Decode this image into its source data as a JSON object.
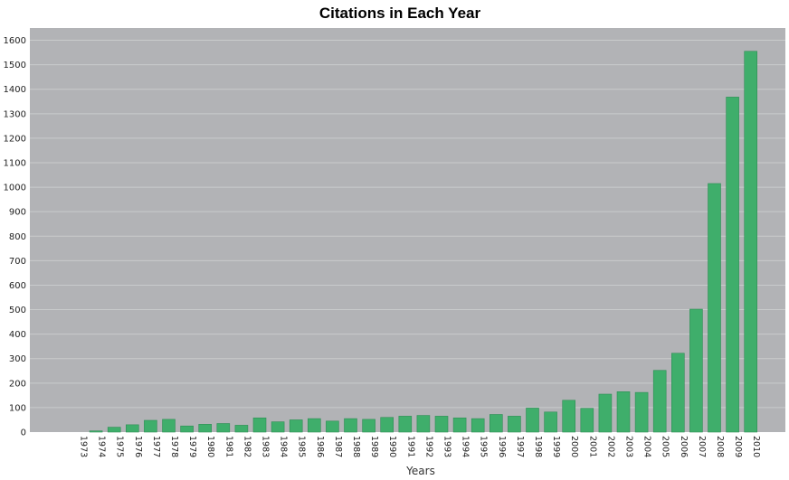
{
  "chart_data": {
    "type": "bar",
    "title": "Citations in Each Year",
    "xlabel": "Years",
    "ylabel": "",
    "ylim": [
      0,
      1650
    ],
    "yticks": [
      0,
      100,
      200,
      300,
      400,
      500,
      600,
      700,
      800,
      900,
      1000,
      1100,
      1200,
      1300,
      1400,
      1500,
      1600
    ],
    "grid": true,
    "legend": "none",
    "categories": [
      "1973",
      "1974",
      "1975",
      "1976",
      "1977",
      "1978",
      "1979",
      "1980",
      "1981",
      "1982",
      "1983",
      "1984",
      "1985",
      "1986",
      "1987",
      "1988",
      "1989",
      "1990",
      "1991",
      "1992",
      "1993",
      "1994",
      "1995",
      "1996",
      "1997",
      "1998",
      "1999",
      "2000",
      "2001",
      "2002",
      "2003",
      "2004",
      "2005",
      "2006",
      "2007",
      "2008",
      "2009",
      "2010"
    ],
    "values": [
      0,
      5,
      20,
      30,
      48,
      52,
      25,
      32,
      35,
      28,
      58,
      42,
      50,
      55,
      45,
      55,
      52,
      60,
      65,
      68,
      65,
      58,
      55,
      72,
      65,
      98,
      82,
      130,
      97,
      155,
      165,
      162,
      252,
      322,
      502,
      1015,
      1368,
      1555
    ],
    "colors": {
      "bar": "#3fae6b",
      "plot_background": "#b2b3b6",
      "grid": "#c9cbcc"
    }
  }
}
